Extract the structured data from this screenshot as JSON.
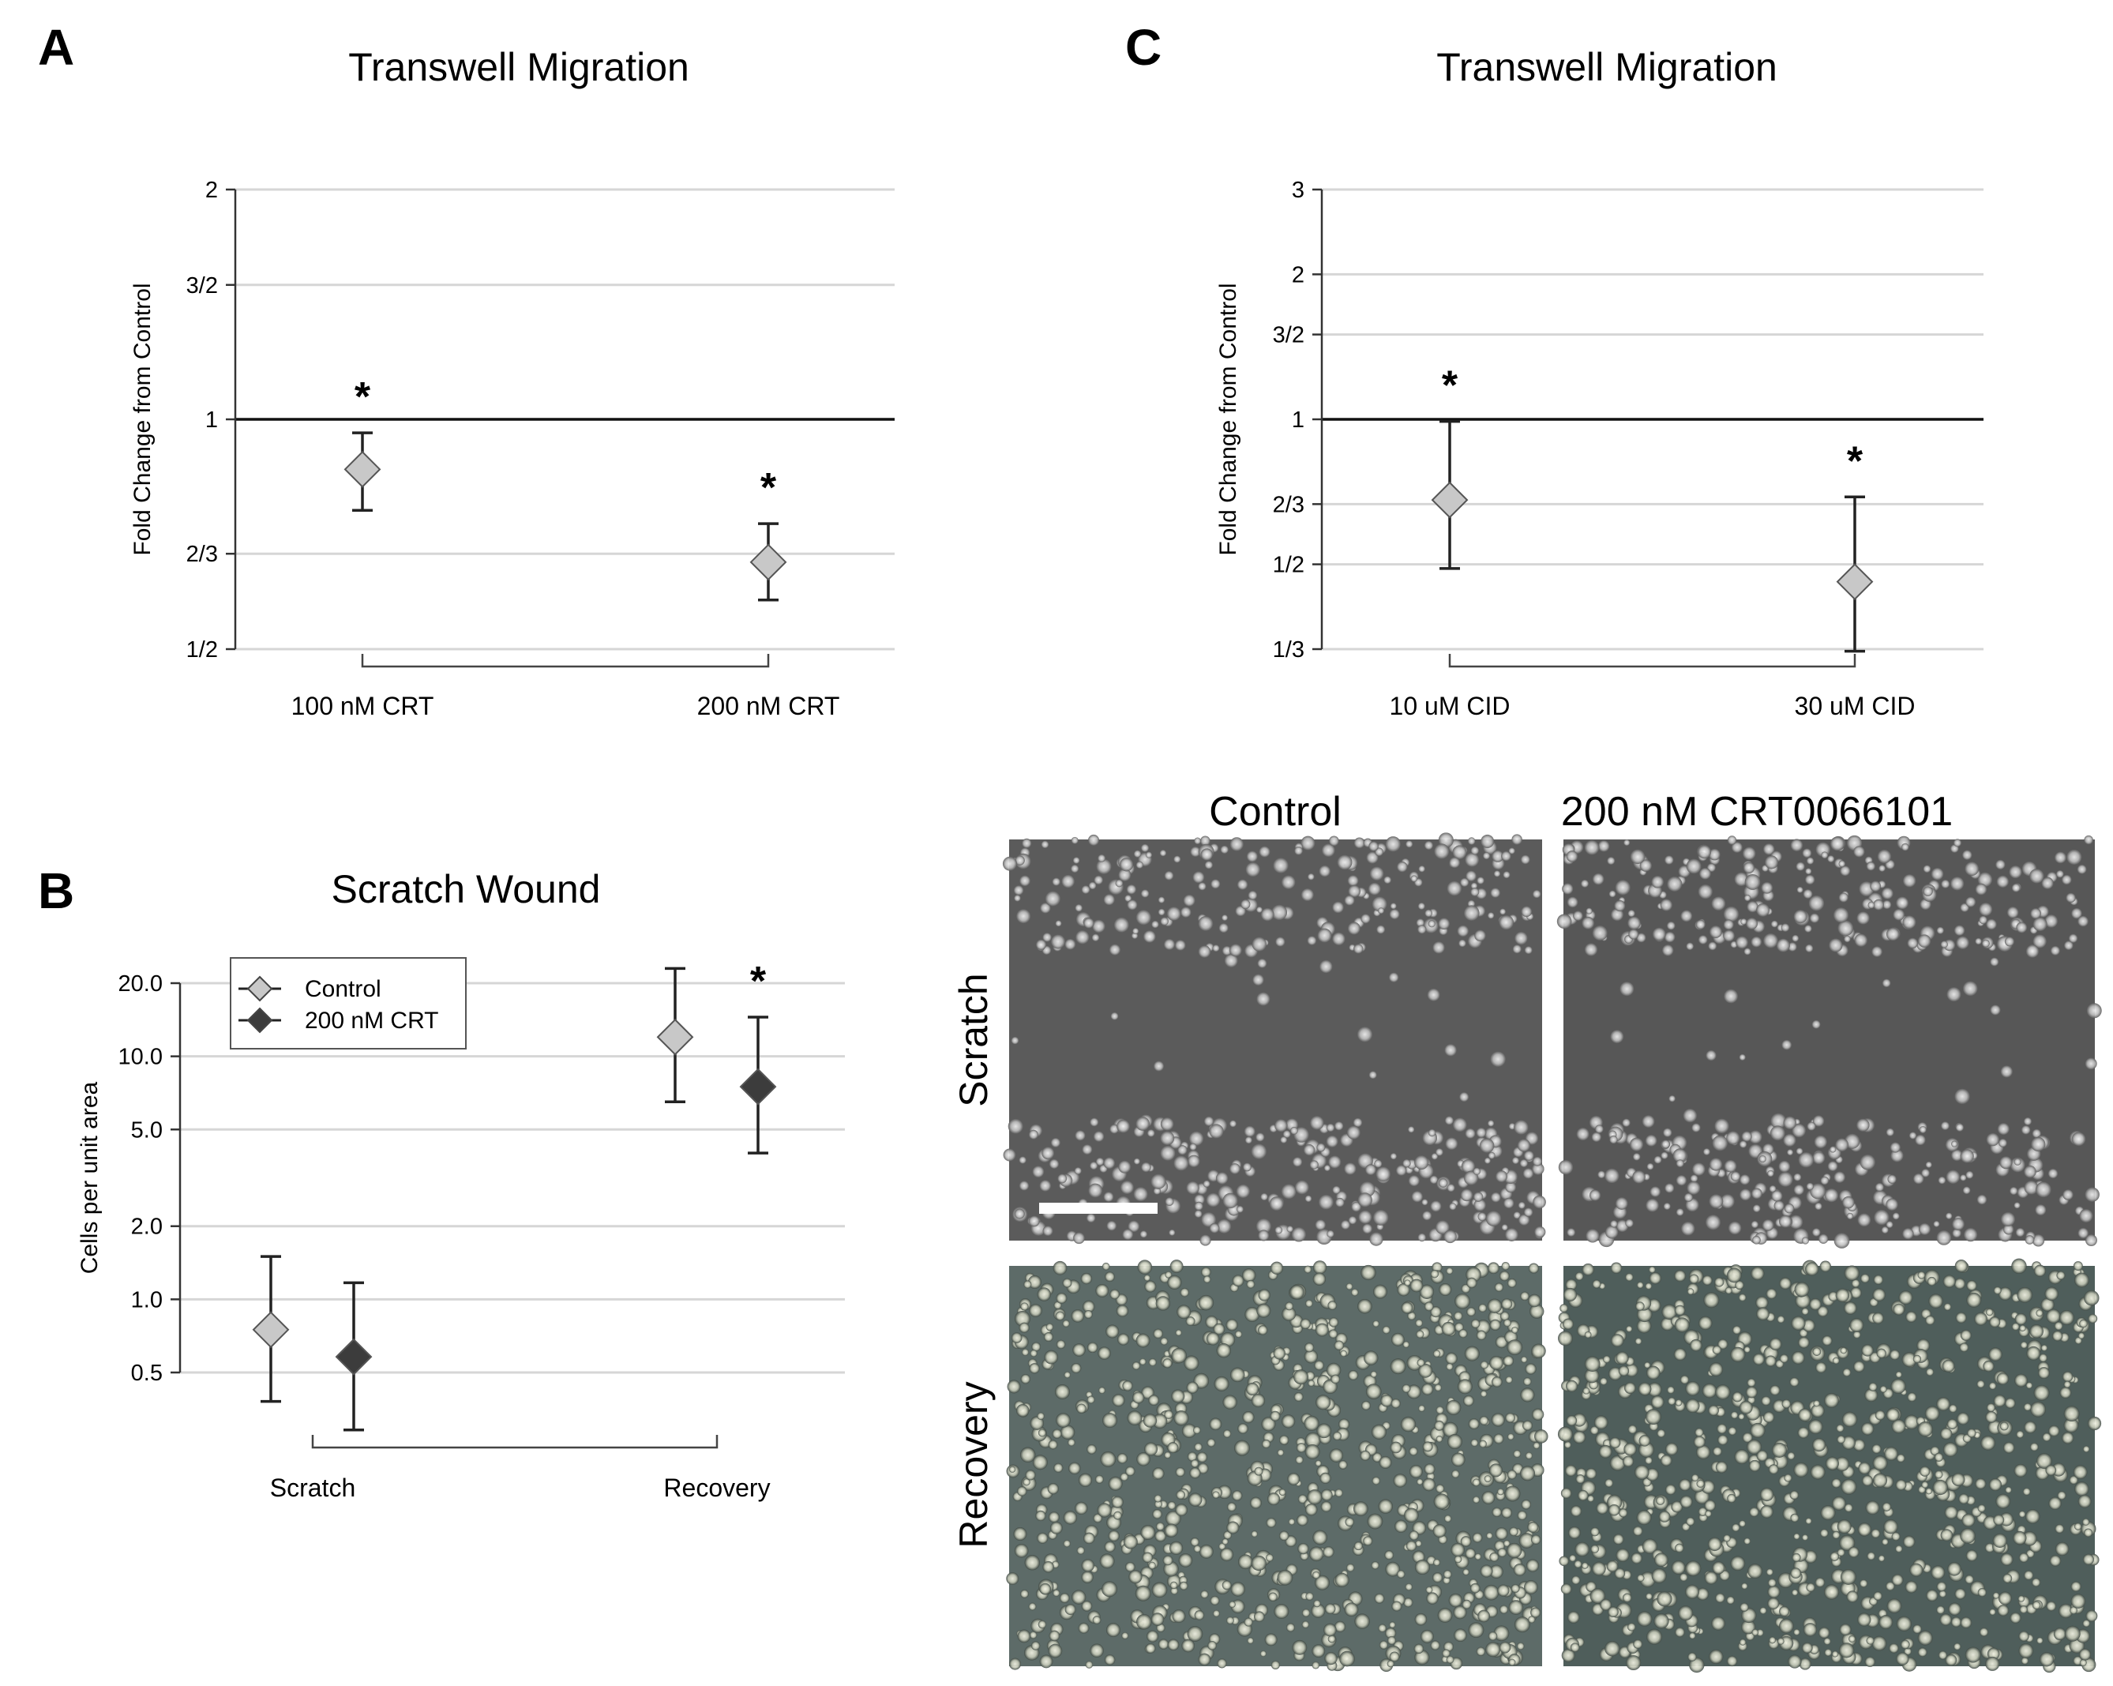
{
  "chart_data": [
    {
      "id": "A",
      "panel_label": "A",
      "type": "scatter",
      "title": "Transwell Migration",
      "ylabel": "Fold Change from Control",
      "yscale": "log",
      "ylim": [
        0.5,
        2
      ],
      "yticks": [
        {
          "value": 2,
          "label": "2"
        },
        {
          "value": 1.5,
          "label": "3/2"
        },
        {
          "value": 1,
          "label": "1"
        },
        {
          "value": 0.6667,
          "label": "2/3"
        },
        {
          "value": 0.5,
          "label": "1/2"
        }
      ],
      "reference_line": 1,
      "categories": [
        "100 nM CRT",
        "200 nM CRT"
      ],
      "series": [
        {
          "color": "#c8c8c8",
          "values": [
            0.86,
            0.65
          ],
          "err_low": [
            0.76,
            0.58
          ],
          "err_high": [
            0.96,
            0.73
          ],
          "significance": [
            "*",
            "*"
          ]
        }
      ]
    },
    {
      "id": "C",
      "panel_label": "C",
      "type": "scatter",
      "title": "Transwell Migration",
      "ylabel": "Fold Change from Control",
      "yscale": "log",
      "ylim": [
        0.3333,
        3
      ],
      "yticks": [
        {
          "value": 3,
          "label": "3"
        },
        {
          "value": 2,
          "label": "2"
        },
        {
          "value": 1.5,
          "label": "3/2"
        },
        {
          "value": 1,
          "label": "1"
        },
        {
          "value": 0.6667,
          "label": "2/3"
        },
        {
          "value": 0.5,
          "label": "1/2"
        },
        {
          "value": 0.3333,
          "label": "1/3"
        }
      ],
      "reference_line": 1,
      "categories": [
        "10 uM CID",
        "30 uM CID"
      ],
      "series": [
        {
          "color": "#c8c8c8",
          "values": [
            0.68,
            0.46
          ],
          "err_low": [
            0.49,
            0.33
          ],
          "err_high": [
            0.99,
            0.69
          ],
          "significance": [
            "*",
            "*"
          ]
        }
      ]
    },
    {
      "id": "B",
      "panel_label": "B",
      "type": "scatter",
      "title": "Scratch Wound",
      "ylabel": "Cells per unit area",
      "yscale": "log",
      "ylim": [
        0.5,
        20
      ],
      "yticks": [
        {
          "value": 20,
          "label": "20.0"
        },
        {
          "value": 10,
          "label": "10.0"
        },
        {
          "value": 5,
          "label": "5.0"
        },
        {
          "value": 2,
          "label": "2.0"
        },
        {
          "value": 1,
          "label": "1.0"
        },
        {
          "value": 0.5,
          "label": "0.5"
        }
      ],
      "categories": [
        "Scratch",
        "Recovery"
      ],
      "legend_position": "top-left",
      "series": [
        {
          "name": "Control",
          "color": "#c8c8c8",
          "values": [
            0.75,
            12.0
          ],
          "err_low": [
            0.38,
            6.5
          ],
          "err_high": [
            1.5,
            23.0
          ],
          "significance": [
            "",
            ""
          ]
        },
        {
          "name": "200 nM CRT",
          "color": "#3c3c3c",
          "values": [
            0.58,
            7.5
          ],
          "err_low": [
            0.29,
            4.0
          ],
          "err_high": [
            1.17,
            14.5
          ],
          "significance": [
            "",
            "*"
          ]
        }
      ]
    }
  ],
  "micrographs": {
    "col_titles": [
      "Control",
      "200 nM CRT0066101"
    ],
    "row_labels": [
      "Scratch",
      "Recovery"
    ]
  }
}
